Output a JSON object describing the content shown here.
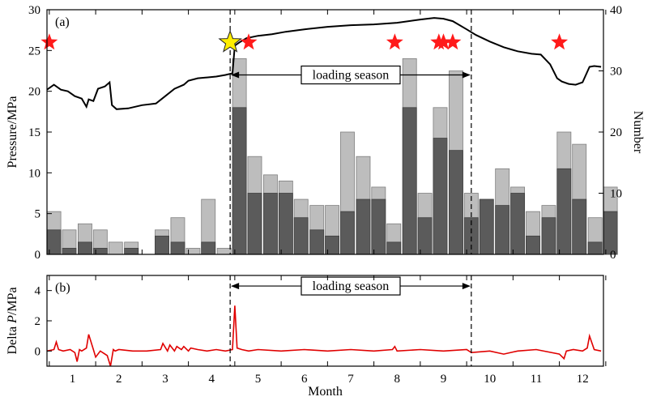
{
  "chart_data": [
    {
      "panel": "(a)",
      "type": "bar+line",
      "xlabel": "",
      "x_ticks": [
        "1",
        "2",
        "3",
        "4",
        "5",
        "6",
        "7",
        "8",
        "9",
        "10",
        "11",
        "12"
      ],
      "xlim": [
        0.45,
        12.45
      ],
      "ylabel_left": "Pressure/MPa",
      "ylim_left": [
        0,
        30
      ],
      "yticks_left": [
        "0",
        "5",
        "10",
        "15",
        "20",
        "25",
        "30"
      ],
      "ylabel_right": "Number",
      "ylim_right": [
        0,
        40
      ],
      "yticks_right": [
        "0",
        "10",
        "20",
        "30",
        "40"
      ],
      "bar_series": [
        {
          "name": "Number (total)",
          "color": "#bdbdbd",
          "values": [
            7,
            4,
            5,
            4,
            2,
            2,
            0,
            4,
            6,
            1,
            9,
            1,
            32,
            16,
            13,
            12,
            9,
            8,
            8,
            20,
            16,
            11,
            5,
            32,
            10,
            24,
            30,
            10,
            9,
            14,
            11,
            7,
            8,
            20,
            18,
            6,
            11
          ]
        },
        {
          "name": "Number (subset)",
          "color": "#5b5b5b",
          "values": [
            4,
            1,
            2,
            1,
            0,
            1,
            0,
            3,
            2,
            0,
            2,
            0,
            24,
            10,
            10,
            10,
            6,
            4,
            3,
            7,
            9,
            9,
            2,
            24,
            6,
            19,
            17,
            6,
            9,
            8,
            10,
            3,
            6,
            14,
            9,
            2,
            7
          ]
        }
      ],
      "bar_x": [
        0.6,
        0.93,
        1.27,
        1.6,
        1.93,
        2.27,
        2.6,
        2.93,
        3.27,
        3.6,
        3.93,
        4.27,
        4.6,
        4.93,
        5.27,
        5.6,
        5.93,
        6.27,
        6.6,
        6.93,
        7.27,
        7.6,
        7.93,
        8.27,
        8.6,
        8.93,
        9.27,
        9.6,
        9.93,
        10.27,
        10.6,
        10.93,
        11.27,
        11.6,
        11.93,
        12.27,
        12.6
      ],
      "line_series": {
        "name": "Pressure/MPa",
        "color": "#000000",
        "x": [
          0.45,
          0.6,
          0.75,
          0.9,
          1.05,
          1.2,
          1.3,
          1.35,
          1.45,
          1.55,
          1.7,
          1.8,
          1.85,
          1.95,
          2.2,
          2.5,
          2.8,
          3.0,
          3.2,
          3.4,
          3.5,
          3.7,
          3.9,
          4.1,
          4.3,
          4.45,
          4.5,
          4.6,
          4.75,
          5.0,
          5.3,
          5.6,
          6.0,
          6.5,
          7.0,
          7.5,
          8.0,
          8.5,
          8.8,
          9.0,
          9.2,
          9.5,
          9.7,
          10.0,
          10.3,
          10.6,
          10.9,
          11.1,
          11.3,
          11.45,
          11.55,
          11.7,
          11.85,
          12.0,
          12.15,
          12.25,
          12.4
        ],
        "values": [
          20.2,
          20.8,
          20.2,
          20.0,
          19.4,
          19.1,
          18.1,
          19.0,
          18.8,
          20.3,
          20.6,
          21.1,
          18.3,
          17.8,
          17.9,
          18.3,
          18.5,
          19.4,
          20.3,
          20.8,
          21.3,
          21.6,
          21.7,
          21.8,
          22.0,
          22.2,
          25.6,
          26.0,
          26.5,
          26.8,
          27.0,
          27.3,
          27.6,
          27.9,
          28.1,
          28.2,
          28.4,
          28.8,
          29.0,
          28.9,
          28.6,
          27.6,
          26.9,
          26.1,
          25.4,
          24.9,
          24.6,
          24.5,
          23.3,
          21.6,
          21.2,
          20.9,
          20.8,
          21.1,
          23.0,
          23.1,
          23.0
        ]
      },
      "events_red_stars": [
        0.5,
        4.8,
        7.95,
        8.9,
        9.0,
        9.2,
        11.5
      ],
      "event_yellow_star": 4.4,
      "season_bounds": [
        4.4,
        9.6
      ],
      "annotation": "loading season"
    },
    {
      "panel": "(b)",
      "type": "line",
      "xlabel": "Month",
      "x_ticks": [
        "1",
        "2",
        "3",
        "4",
        "5",
        "6",
        "7",
        "8",
        "9",
        "10",
        "11",
        "12"
      ],
      "xlim": [
        0.45,
        12.45
      ],
      "ylabel": "Delta P/MPa",
      "ylim": [
        -1,
        5
      ],
      "yticks": [
        "0",
        "2",
        "4"
      ],
      "series": {
        "name": "Delta P",
        "color": "#e00000",
        "x": [
          0.45,
          0.6,
          0.65,
          0.7,
          0.8,
          0.95,
          1.05,
          1.1,
          1.15,
          1.2,
          1.3,
          1.35,
          1.45,
          1.5,
          1.6,
          1.75,
          1.82,
          1.88,
          1.92,
          2.0,
          2.3,
          2.6,
          2.9,
          2.95,
          3.05,
          3.1,
          3.2,
          3.25,
          3.35,
          3.4,
          3.5,
          3.55,
          3.7,
          3.9,
          4.1,
          4.3,
          4.45,
          4.5,
          4.55,
          4.65,
          4.8,
          5.0,
          5.5,
          6.0,
          6.5,
          7.0,
          7.5,
          7.9,
          7.95,
          8.0,
          8.5,
          9.0,
          9.5,
          9.6,
          10.0,
          10.3,
          10.6,
          11.0,
          11.5,
          11.6,
          11.65,
          11.8,
          12.0,
          12.1,
          12.15,
          12.25,
          12.4
        ],
        "values": [
          0.0,
          0.1,
          0.6,
          0.1,
          0.0,
          0.1,
          -0.1,
          -0.7,
          0.1,
          0.0,
          0.2,
          1.1,
          0.1,
          -0.4,
          0.0,
          -0.3,
          -1.0,
          0.1,
          0.0,
          0.1,
          0.0,
          0.0,
          0.1,
          0.5,
          0.0,
          0.4,
          0.0,
          0.3,
          0.1,
          0.3,
          0.0,
          0.2,
          0.1,
          0.0,
          0.1,
          0.0,
          0.1,
          3.0,
          0.2,
          0.1,
          0.0,
          0.1,
          0.0,
          0.1,
          0.0,
          0.1,
          0.0,
          0.1,
          0.3,
          0.0,
          0.1,
          0.0,
          0.1,
          -0.1,
          0.0,
          -0.2,
          0.0,
          0.1,
          -0.2,
          -0.5,
          0.0,
          0.1,
          0.0,
          0.2,
          1.0,
          0.1,
          0.0
        ]
      },
      "season_bounds": [
        4.4,
        9.6
      ],
      "annotation": "loading season"
    }
  ]
}
